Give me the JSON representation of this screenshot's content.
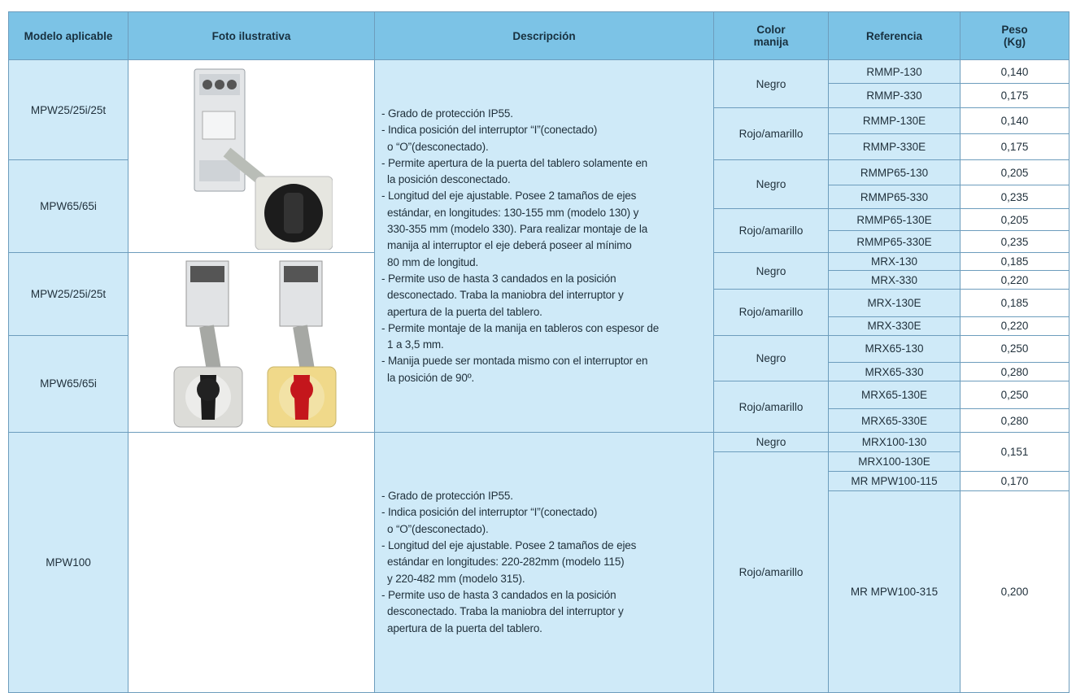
{
  "table": {
    "headers": [
      "Modelo aplicable",
      "Foto ilustrativa",
      "Descripción",
      "Color manija",
      "Referencia",
      "Peso (Kg)"
    ],
    "blocks": [
      {
        "description": [
          "- Grado de protección IP55.",
          "- Indica posición del interruptor “I”(conectado)",
          "o “O”(desconectado).",
          "- Permite apertura de la puerta del tablero solamente en",
          "la posición desconectado.",
          "- Longitud del eje ajustable. Posee 2 tamaños de ejes",
          "estándar, en longitudes: 130-155 mm (modelo 130) y",
          "330-355 mm (modelo 330). Para realizar montaje de la",
          "manija al interruptor el eje deberá poseer al mínimo",
          "80 mm de longitud.",
          "- Permite uso de hasta 3 candados en la posición",
          "desconectado. Traba la maniobra del interruptor y",
          "apertura de la puerta del tablero.",
          "- Permite montaje de la manija en tableros con espesor de",
          "1 a 3,5 mm.",
          "- Manija puede ser montada mismo con el interruptor en",
          "la posición de 90º."
        ],
        "photos": [
          {
            "models": [
              {
                "model": "MPW25/25i/25t",
                "colors": [
                  {
                    "color": "Negro",
                    "refs": [
                      {
                        "ref": "RMMP-130",
                        "peso": "0,140"
                      },
                      {
                        "ref": "RMMP-330",
                        "peso": "0,175"
                      }
                    ]
                  },
                  {
                    "color": "Rojo/amarillo",
                    "refs": [
                      {
                        "ref": "RMMP-130E",
                        "peso": "0,140"
                      },
                      {
                        "ref": "RMMP-330E",
                        "peso": "0,175"
                      }
                    ]
                  }
                ]
              },
              {
                "model": "MPW65/65i",
                "colors": [
                  {
                    "color": "Negro",
                    "refs": [
                      {
                        "ref": "RMMP65-130",
                        "peso": "0,205"
                      },
                      {
                        "ref": "RMMP65-330",
                        "peso": "0,235"
                      }
                    ]
                  },
                  {
                    "color": "Rojo/amarillo",
                    "refs": [
                      {
                        "ref": "RMMP65-130E",
                        "peso": "0,205"
                      },
                      {
                        "ref": "RMMP65-330E",
                        "peso": "0,235"
                      }
                    ]
                  }
                ]
              }
            ]
          },
          {
            "models": [
              {
                "model": "MPW25/25i/25t",
                "colors": [
                  {
                    "color": "Negro",
                    "refs": [
                      {
                        "ref": "MRX-130",
                        "peso": "0,185"
                      },
                      {
                        "ref": "MRX-330",
                        "peso": "0,220"
                      }
                    ]
                  },
                  {
                    "color": "Rojo/amarillo",
                    "refs": [
                      {
                        "ref": "MRX-130E",
                        "peso": "0,185"
                      },
                      {
                        "ref": "MRX-330E",
                        "peso": "0,220"
                      }
                    ]
                  }
                ]
              },
              {
                "model": "MPW65/65i",
                "colors": [
                  {
                    "color": "Negro",
                    "refs": [
                      {
                        "ref": "MRX65-130",
                        "peso": "0,250"
                      },
                      {
                        "ref": "MRX65-330",
                        "peso": "0,280"
                      }
                    ]
                  },
                  {
                    "color": "Rojo/amarillo",
                    "refs": [
                      {
                        "ref": "MRX65-130E",
                        "peso": "0,250"
                      },
                      {
                        "ref": "MRX65-330E",
                        "peso": "0,280"
                      }
                    ]
                  }
                ]
              }
            ]
          }
        ]
      },
      {
        "description": [
          "- Grado de protección IP55.",
          "- Indica posición del interruptor “I”(conectado)",
          "o “O”(desconectado).",
          "- Longitud del eje ajustable. Posee 2 tamaños de ejes",
          "estándar en longitudes: 220-282mm (modelo 115)",
          "y 220-482 mm (modelo 315).",
          "- Permite uso de hasta 3 candados en la posición",
          "desconectado. Traba la maniobra del interruptor y",
          "apertura de la puerta del tablero."
        ],
        "photos": [
          {
            "models": [
              {
                "model": "MPW100",
                "colors": [
                  {
                    "color": "Negro",
                    "refs": [
                      {
                        "ref": "MRX100-130",
                        "peso": "0,151"
                      }
                    ]
                  },
                  {
                    "color": "Rojo/amarillo",
                    "refs": [
                      {
                        "ref": "MRX100-130E"
                      },
                      {
                        "ref": "MR MPW100-115",
                        "peso": "0,170"
                      },
                      {
                        "ref": "MR MPW100-315",
                        "peso": "0,200"
                      }
                    ]
                  }
                ]
              }
            ]
          }
        ]
      }
    ]
  }
}
